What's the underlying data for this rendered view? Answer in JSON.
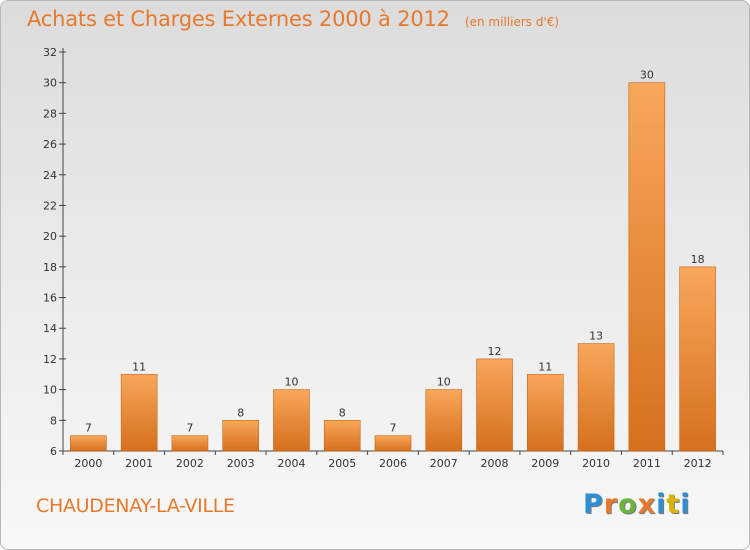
{
  "header": {
    "title": "Achats et Charges Externes 2000 à 2012",
    "unit": "(en milliers d'€)"
  },
  "footer": {
    "commune": "CHAUDENAY-LA-VILLE",
    "logo_letters": [
      "P",
      "r",
      "o",
      "x",
      "i",
      "t",
      "i"
    ],
    "logo_colors": [
      "#2f8fd6",
      "#e8792c",
      "#6cb33f",
      "#e8792c",
      "#2f8fd6",
      "#d9b400",
      "#2f8fd6"
    ]
  },
  "colors": {
    "title": "#e8792c",
    "bar_light": "#f8a75a",
    "bar_dark": "#d5701d",
    "axis": "#444444"
  },
  "chart_data": {
    "type": "bar",
    "title": "Achats et Charges Externes 2000 à 2012",
    "subtitle": "(en milliers d'€)",
    "xlabel": "",
    "ylabel": "",
    "categories": [
      "2000",
      "2001",
      "2002",
      "2003",
      "2004",
      "2005",
      "2006",
      "2007",
      "2008",
      "2009",
      "2010",
      "2011",
      "2012"
    ],
    "values": [
      7,
      11,
      7,
      8,
      10,
      8,
      7,
      10,
      12,
      11,
      13,
      30,
      18
    ],
    "ylim": [
      6,
      32
    ],
    "yticks": [
      6,
      8,
      10,
      12,
      14,
      16,
      18,
      20,
      22,
      24,
      26,
      28,
      30,
      32
    ],
    "grid": false,
    "legend": "none"
  }
}
